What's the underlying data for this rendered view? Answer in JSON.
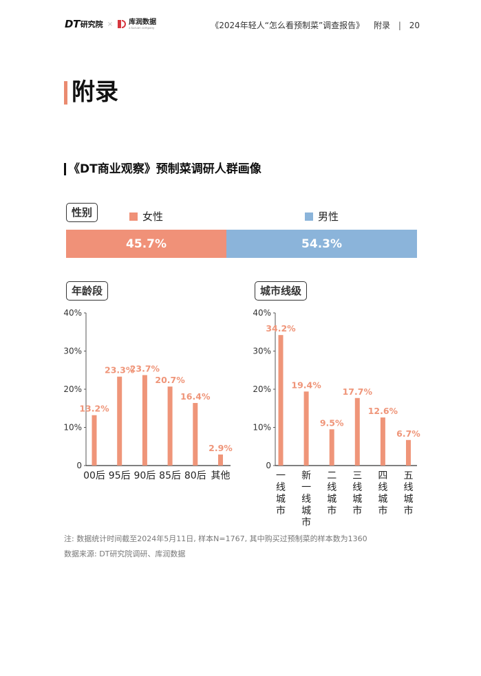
{
  "header": {
    "logo_dt": "DT",
    "logo_dt_cn": "研究院",
    "logo_times": "×",
    "logo_kr_cn": "库润数据",
    "logo_kr_en": "a kuruan company",
    "report_title": "《2024年轻人“怎么看预制菜”调查报告》",
    "section": "附录",
    "divider": "|",
    "page_number": "20"
  },
  "page_title": "附录",
  "section_title": "《DT商业观察》预制菜调研人群画像",
  "colors": {
    "female": "#f09178",
    "male": "#8bb4da",
    "bar": "#ef9579",
    "accent": "#ea8b70"
  },
  "gender": {
    "label": "性别",
    "female_label": "女性",
    "male_label": "男性",
    "female_value_text": "45.7%",
    "male_value_text": "54.3%"
  },
  "age": {
    "label": "年龄段"
  },
  "city": {
    "label": "城市线级"
  },
  "chart_data": [
    {
      "type": "bar",
      "title": "性别",
      "categories": [
        "女性",
        "男性"
      ],
      "values": [
        45.7,
        54.3
      ],
      "value_labels": [
        "45.7%",
        "54.3%"
      ],
      "orientation": "horizontal-stacked"
    },
    {
      "type": "bar",
      "title": "年龄段",
      "categories": [
        "00后",
        "95后",
        "90后",
        "85后",
        "80后",
        "其他"
      ],
      "values": [
        13.2,
        23.3,
        23.7,
        20.7,
        16.4,
        2.9
      ],
      "value_labels": [
        "13.2%",
        "23.3%",
        "23.7%",
        "20.7%",
        "16.4%",
        "2.9%"
      ],
      "ylim": [
        0,
        40
      ],
      "yticks": [
        0,
        10,
        20,
        30,
        40
      ],
      "ytick_labels": [
        "0",
        "10%",
        "20%",
        "30%",
        "40%"
      ],
      "grid": false
    },
    {
      "type": "bar",
      "title": "城市线级",
      "categories": [
        "一线城市",
        "新一线城市",
        "二线城市",
        "三线城市",
        "四线城市",
        "五线城市"
      ],
      "values": [
        34.2,
        19.4,
        9.5,
        17.7,
        12.6,
        6.7
      ],
      "value_labels": [
        "34.2%",
        "19.4%",
        "9.5%",
        "17.7%",
        "12.6%",
        "6.7%"
      ],
      "ylim": [
        0,
        40
      ],
      "yticks": [
        0,
        10,
        20,
        30,
        40
      ],
      "ytick_labels": [
        "0",
        "10%",
        "20%",
        "30%",
        "40%"
      ],
      "grid": false
    }
  ],
  "footnotes": {
    "note": "注: 数据统计时间截至2024年5月11日, 样本N=1767, 其中购买过预制菜的样本数为1360",
    "source": "数据来源: DT研究院调研、库润数据"
  }
}
